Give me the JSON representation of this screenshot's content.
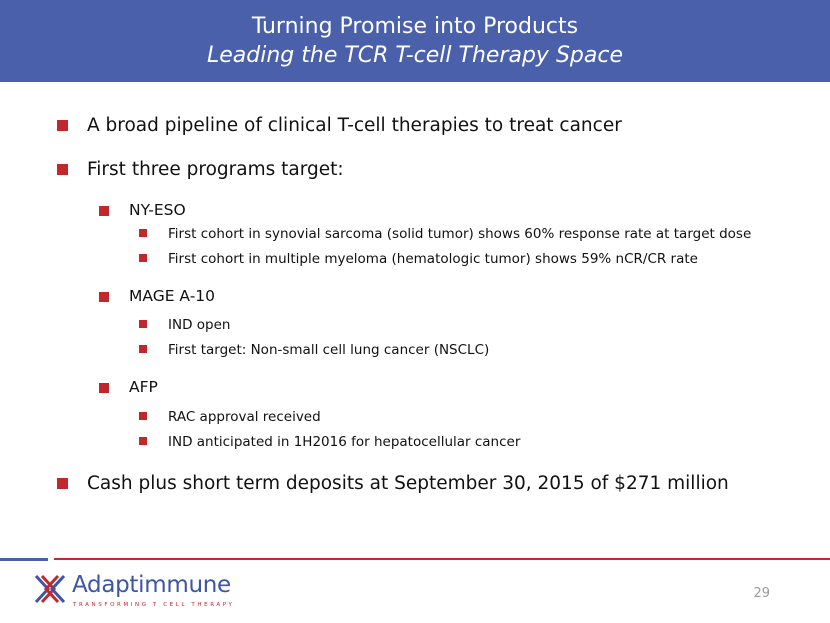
{
  "header": {
    "title": "Turning Promise into Products",
    "subtitle": "Leading the TCR T-cell Therapy Space"
  },
  "bullets": {
    "b1": "A broad pipeline of clinical T-cell therapies to treat cancer",
    "b2": "First three programs target:",
    "nyeso": "NY-ESO",
    "nyeso_1": "First cohort in synovial sarcoma (solid tumor) shows 60% response rate at target dose",
    "nyeso_2": "First cohort in multiple myeloma (hematologic tumor) shows 59% nCR/CR rate",
    "mage": "MAGE A-10",
    "mage_1": "IND open",
    "mage_2": "First target: Non-small cell lung cancer (NSCLC)",
    "afp": "AFP",
    "afp_1": "RAC approval received",
    "afp_2": "IND anticipated in 1H2016 for hepatocellular cancer",
    "b3": "Cash plus short term deposits at September 30, 2015 of $271 million"
  },
  "footer": {
    "logo_text": "Adaptimmune",
    "logo_tagline": "TRANSFORMING T CELL THERAPY",
    "page_number": "29"
  },
  "colors": {
    "header_bg": "#4a60ab",
    "bullet_red": "#c1272d",
    "logo_blue": "#3c55a5"
  }
}
